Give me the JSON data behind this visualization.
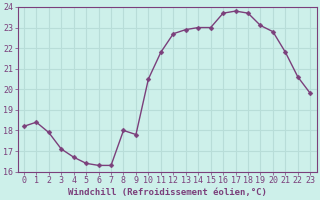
{
  "x": [
    0,
    1,
    2,
    3,
    4,
    5,
    6,
    7,
    8,
    9,
    10,
    11,
    12,
    13,
    14,
    15,
    16,
    17,
    18,
    19,
    20,
    21,
    22,
    23
  ],
  "y": [
    18.2,
    18.4,
    17.9,
    17.1,
    16.7,
    16.4,
    16.3,
    16.3,
    18.0,
    17.8,
    20.5,
    21.8,
    22.7,
    22.9,
    23.0,
    23.0,
    23.7,
    23.8,
    23.7,
    23.1,
    22.8,
    21.8,
    20.6,
    19.8
  ],
  "line_color": "#7b3f7b",
  "marker": "D",
  "markersize": 2.5,
  "linewidth": 1.0,
  "background_color": "#cdf0ea",
  "grid_color": "#b8ddd8",
  "xlabel": "Windchill (Refroidissement éolien,°C)",
  "ylabel": "",
  "ylim": [
    16,
    24
  ],
  "xlim_min": -0.5,
  "xlim_max": 23.5,
  "yticks": [
    16,
    17,
    18,
    19,
    20,
    21,
    22,
    23,
    24
  ],
  "xticks": [
    0,
    1,
    2,
    3,
    4,
    5,
    6,
    7,
    8,
    9,
    10,
    11,
    12,
    13,
    14,
    15,
    16,
    17,
    18,
    19,
    20,
    21,
    22,
    23
  ],
  "xlabel_fontsize": 6.5,
  "tick_fontsize": 6.0,
  "tick_color": "#7b3f7b",
  "axis_label_color": "#7b3f7b",
  "spine_color": "#7b3f7b"
}
